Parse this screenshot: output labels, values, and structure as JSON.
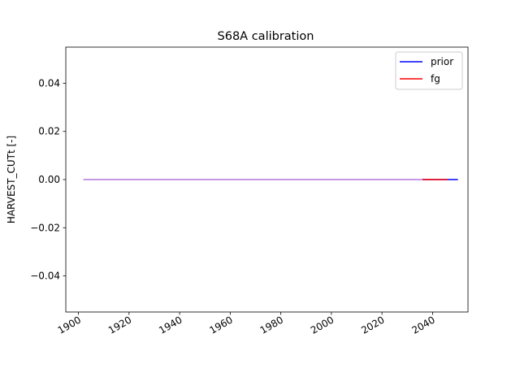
{
  "chart_data": {
    "type": "line",
    "title": "S68A calibration",
    "xlabel": "",
    "ylabel": "HARVEST_CUTt [-]",
    "xlim": [
      1895,
      2054
    ],
    "ylim": [
      -0.055,
      0.055
    ],
    "xticks": [
      1900,
      1920,
      1940,
      1960,
      1980,
      2000,
      2020,
      2040
    ],
    "xtick_labels": [
      "1900",
      "1920",
      "1940",
      "1960",
      "1980",
      "2000",
      "2020",
      "2040"
    ],
    "yticks": [
      0.04,
      0.02,
      0.0,
      -0.02,
      -0.04
    ],
    "ytick_labels": [
      "0.04",
      "0.02",
      "0.00",
      "−0.02",
      "−0.04"
    ],
    "grid": false,
    "legend_position": "upper-right",
    "series": [
      {
        "name": "prior",
        "color": "#0000ff",
        "x": [
          1902,
          2050
        ],
        "y": [
          0,
          0
        ]
      },
      {
        "name": "fg",
        "color": "#ff0000",
        "x": [
          2036,
          2046
        ],
        "y": [
          0,
          0
        ]
      },
      {
        "color": "#dda0dd",
        "x": [
          1902,
          2036
        ],
        "y": [
          0,
          0
        ]
      }
    ]
  }
}
